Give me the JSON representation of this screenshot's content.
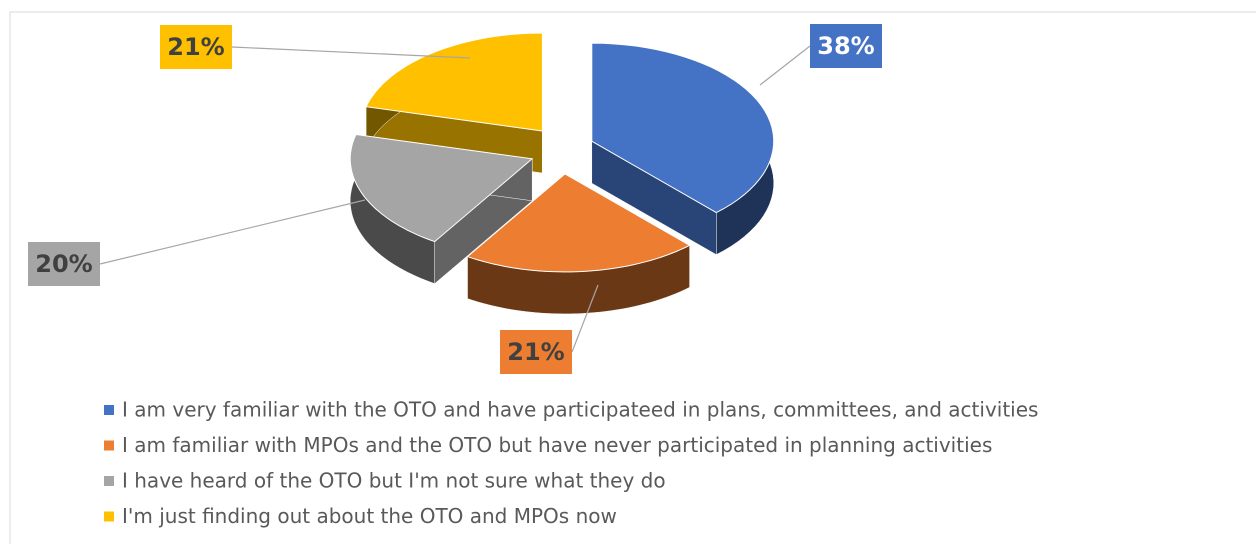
{
  "chart_data": {
    "type": "pie",
    "categories": [
      "I am very familiar with the OTO and have participateed in plans, committees, and activities",
      "I am familiar with MPOs and the OTO but have never participated in planning activities",
      "I have heard of the OTO but I'm not sure what they do",
      "I'm just finding out about the OTO and MPOs now"
    ],
    "values": [
      38,
      21,
      20,
      21
    ],
    "value_labels": [
      "38%",
      "21%",
      "20%",
      "21%"
    ],
    "colors": [
      "#4472c4",
      "#ed7d31",
      "#a5a5a5",
      "#ffc000"
    ],
    "exploded": true,
    "three_d": true,
    "legend": "bottom"
  }
}
